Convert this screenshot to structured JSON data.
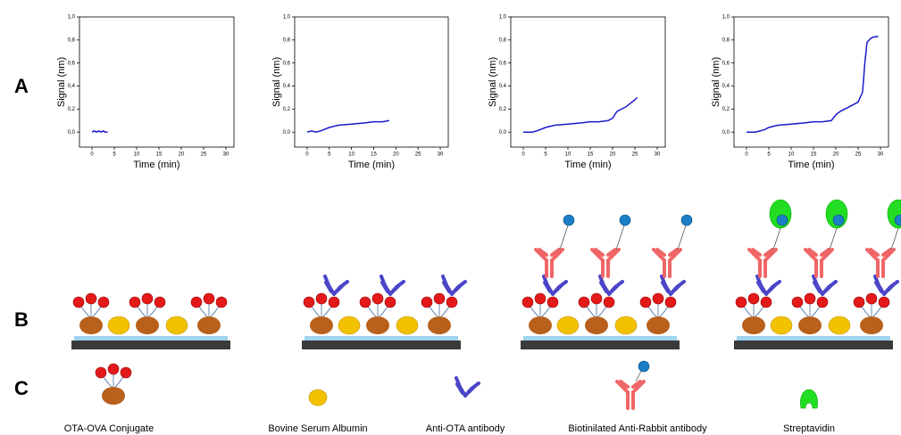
{
  "panel_labels": [
    "A",
    "B",
    "C"
  ],
  "legend": [
    "OTA-OVA Conjugate",
    "Bovine Serum Albumin",
    "Anti-OTA antibody",
    "Biotinilated Anti-Rabbit antibody",
    "Streptavidin"
  ],
  "chart_data": [
    {
      "type": "line",
      "x_label": "Time (min)",
      "y_label": "Signal (nm)",
      "color": "#1a1acc",
      "x": [
        0,
        0.5,
        1,
        1.5,
        2,
        2.5,
        3,
        3.5
      ],
      "values": [
        0,
        0.01,
        0,
        0.01,
        0,
        0.01,
        0,
        0
      ],
      "xlim": [
        -2.8,
        31.8
      ],
      "ylim": [
        -0.13,
        1.0
      ],
      "xticks": [
        0,
        5,
        10,
        15,
        20,
        25,
        30
      ],
      "yticks": [
        {
          "value": 0,
          "label": "0,0"
        },
        {
          "value": 0.2,
          "label": "0,2"
        },
        {
          "value": 0.4,
          "label": "0,4"
        },
        {
          "value": 0.6,
          "label": "0,6"
        },
        {
          "value": 0.8,
          "label": "0,8"
        },
        {
          "value": 1.0,
          "label": "1,0"
        }
      ]
    },
    {
      "type": "line",
      "x_label": "Time (min)",
      "y_label": "Signal (nm)",
      "color": "#1a1acc",
      "x": [
        0,
        1,
        2,
        3,
        5,
        7,
        10,
        13,
        15,
        17,
        18.5
      ],
      "values": [
        0,
        0.01,
        0,
        0.01,
        0.04,
        0.06,
        0.07,
        0.08,
        0.09,
        0.09,
        0.1
      ],
      "xlim": [
        -2.8,
        31.8
      ],
      "ylim": [
        -0.13,
        1.0
      ],
      "xticks": [
        0,
        5,
        10,
        15,
        20,
        25,
        30
      ],
      "yticks": [
        {
          "value": 0,
          "label": "0,0"
        },
        {
          "value": 0.2,
          "label": "0,2"
        },
        {
          "value": 0.4,
          "label": "0,4"
        },
        {
          "value": 0.6,
          "label": "0,6"
        },
        {
          "value": 0.8,
          "label": "0,8"
        },
        {
          "value": 1.0,
          "label": "1,0"
        }
      ]
    },
    {
      "type": "line",
      "x_label": "Time (min)",
      "y_label": "Signal (nm)",
      "color": "#1a1acc",
      "x": [
        0,
        1,
        2,
        3,
        5,
        7,
        10,
        13,
        15,
        17,
        19,
        20,
        21,
        23,
        25,
        25.5
      ],
      "values": [
        0,
        0,
        0,
        0.01,
        0.04,
        0.06,
        0.07,
        0.08,
        0.09,
        0.09,
        0.1,
        0.12,
        0.18,
        0.22,
        0.28,
        0.3
      ],
      "xlim": [
        -2.8,
        31.8
      ],
      "ylim": [
        -0.13,
        1.0
      ],
      "xticks": [
        0,
        5,
        10,
        15,
        20,
        25,
        30
      ],
      "yticks": [
        {
          "value": 0,
          "label": "0,0"
        },
        {
          "value": 0.2,
          "label": "0,2"
        },
        {
          "value": 0.4,
          "label": "0,4"
        },
        {
          "value": 0.6,
          "label": "0,6"
        },
        {
          "value": 0.8,
          "label": "0,8"
        },
        {
          "value": 1.0,
          "label": "1,0"
        }
      ]
    },
    {
      "type": "line",
      "x_label": "Time (min)",
      "y_label": "Signal (nm)",
      "color": "#1a1acc",
      "x": [
        0,
        1,
        2,
        3,
        4,
        5,
        7,
        10,
        13,
        15,
        17,
        19,
        20,
        21,
        23,
        25,
        26,
        26.5,
        27,
        28,
        29,
        29.5
      ],
      "values": [
        0,
        0,
        0,
        0.01,
        0.02,
        0.04,
        0.06,
        0.07,
        0.08,
        0.09,
        0.09,
        0.1,
        0.15,
        0.18,
        0.22,
        0.26,
        0.35,
        0.6,
        0.78,
        0.82,
        0.83,
        0.83
      ],
      "xlim": [
        -2.8,
        31.8
      ],
      "ylim": [
        -0.13,
        1.0
      ],
      "xticks": [
        0,
        5,
        10,
        15,
        20,
        25,
        30
      ],
      "yticks": [
        {
          "value": 0,
          "label": "0,0"
        },
        {
          "value": 0.2,
          "label": "0,2"
        },
        {
          "value": 0.4,
          "label": "0,4"
        },
        {
          "value": 0.6,
          "label": "0,6"
        },
        {
          "value": 0.8,
          "label": "0,8"
        },
        {
          "value": 1.0,
          "label": "1,0"
        }
      ]
    }
  ]
}
